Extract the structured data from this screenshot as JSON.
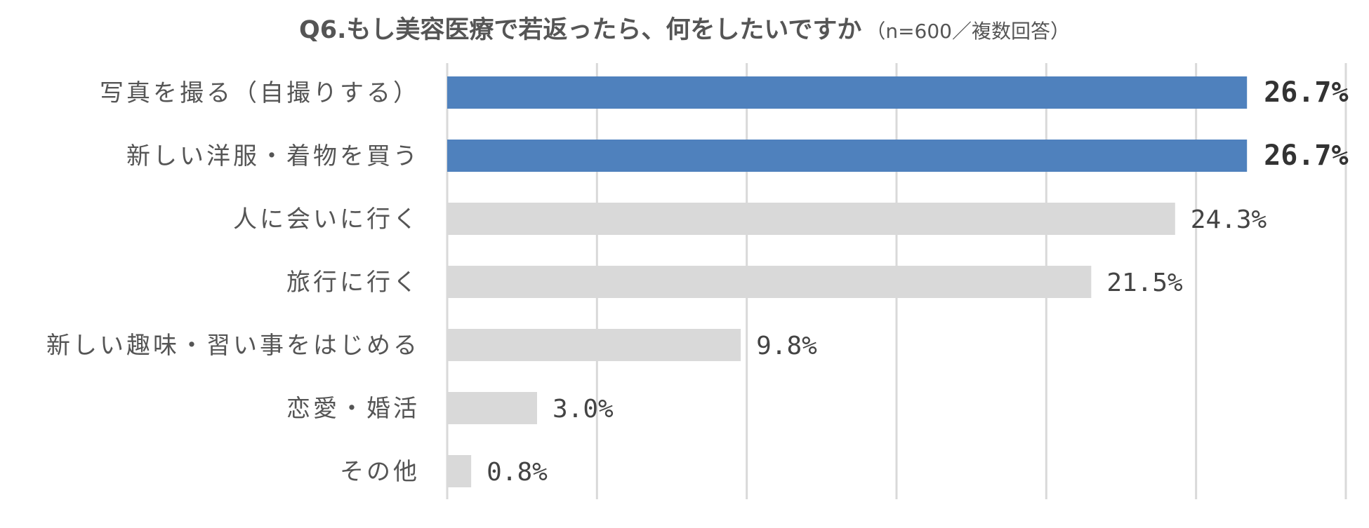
{
  "title": {
    "main": "Q6.もし美容医療で若返ったら、何をしたいですか",
    "sub": "（n=600／複数回答）"
  },
  "chart_data": {
    "type": "bar",
    "orientation": "horizontal",
    "title": "Q6.もし美容医療で若返ったら、何をしたいですか",
    "subtitle": "（n=600／複数回答）",
    "categories": [
      "写真を撮る（自撮りする）",
      "新しい洋服・着物を買う",
      "人に会いに行く",
      "旅行に行く",
      "新しい趣味・習い事をはじめる",
      "恋愛・婚活",
      "その他"
    ],
    "values": [
      26.7,
      26.7,
      24.3,
      21.5,
      9.8,
      3.0,
      0.8
    ],
    "value_labels": [
      "26.7%",
      "26.7%",
      "24.3%",
      "21.5%",
      "9.8%",
      "3.0%",
      "0.8%"
    ],
    "highlighted": [
      true,
      true,
      false,
      false,
      false,
      false,
      false
    ],
    "xlim": [
      0,
      30
    ],
    "grid": true,
    "colors": {
      "highlight": "#4f81bd",
      "normal": "#d9d9d9",
      "grid": "#d9d9d9"
    }
  }
}
